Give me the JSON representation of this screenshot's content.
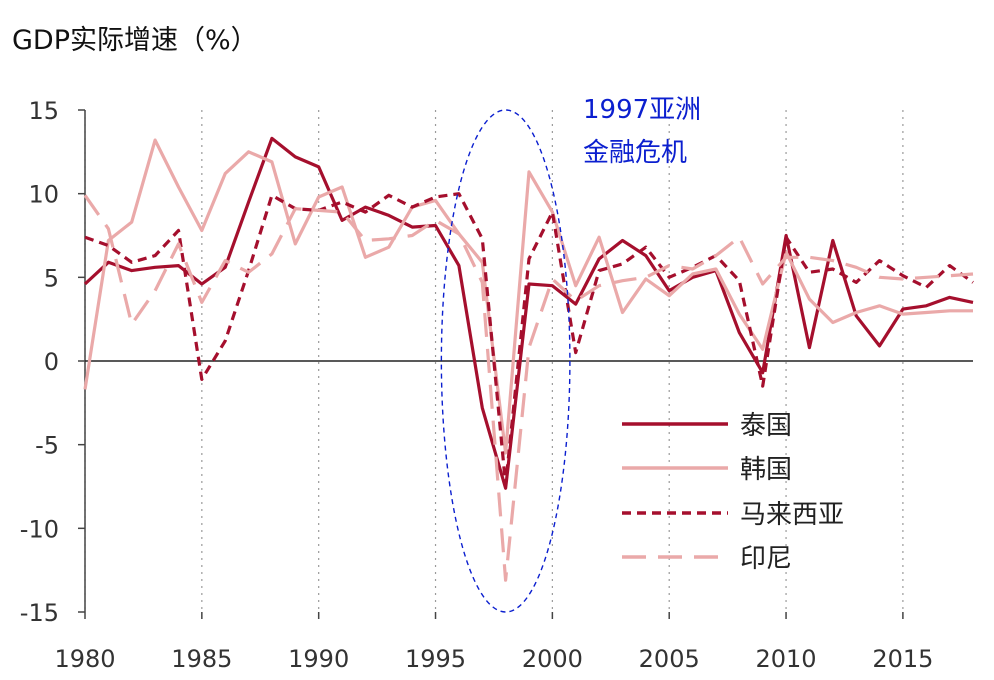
{
  "chart_data": {
    "type": "line",
    "title": "GDP实际增速（%）",
    "xlim": [
      1980,
      2018
    ],
    "ylim": [
      -15,
      15
    ],
    "x_ticks": [
      "1980",
      "1985",
      "1990",
      "1995",
      "2000",
      "2005",
      "2010",
      "2015"
    ],
    "y_ticks": [
      "15",
      "10",
      "5",
      "0",
      "-5",
      "-10",
      "-15"
    ],
    "grid": "vertical dotted",
    "legend_placement": "lower-right",
    "annotation": {
      "text_line1": "1997亚洲",
      "text_line2": "金融危机",
      "color": "#0b1fcf",
      "ellipse_center_year": 1998,
      "ellipse_center_value": 0,
      "ellipse_half_width_years": 2.75,
      "ellipse_half_height_value": 15
    },
    "x": [
      1980,
      1981,
      1982,
      1983,
      1984,
      1985,
      1986,
      1987,
      1988,
      1989,
      1990,
      1991,
      1992,
      1993,
      1994,
      1995,
      1996,
      1997,
      1998,
      1999,
      2000,
      2001,
      2002,
      2003,
      2004,
      2005,
      2006,
      2007,
      2008,
      2009,
      2010,
      2011,
      2012,
      2013,
      2014,
      2015,
      2016,
      2017,
      2018
    ],
    "series": [
      {
        "name": "泰国",
        "color": "#a50f2d",
        "style": "solid",
        "values": [
          4.6,
          5.9,
          5.4,
          5.6,
          5.7,
          4.6,
          5.6,
          9.5,
          13.3,
          12.2,
          11.6,
          8.4,
          9.2,
          8.7,
          8.0,
          8.1,
          5.7,
          -2.8,
          -7.6,
          4.6,
          4.5,
          3.4,
          6.1,
          7.2,
          6.3,
          4.2,
          5.0,
          5.4,
          1.7,
          -0.7,
          7.5,
          0.8,
          7.2,
          2.7,
          0.9,
          3.1,
          3.3,
          3.8,
          3.5
        ]
      },
      {
        "name": "韩国",
        "color": "#eaa9a9",
        "style": "solid",
        "values": [
          -1.7,
          7.2,
          8.3,
          13.2,
          10.4,
          7.8,
          11.2,
          12.5,
          11.9,
          7.0,
          9.8,
          10.4,
          6.2,
          6.8,
          9.2,
          9.6,
          7.6,
          5.9,
          -5.5,
          11.3,
          8.9,
          4.5,
          7.4,
          2.9,
          4.9,
          3.9,
          5.2,
          5.5,
          2.8,
          0.7,
          6.5,
          3.7,
          2.3,
          2.9,
          3.3,
          2.8,
          2.9,
          3.0,
          3.0
        ]
      },
      {
        "name": "马来西亚",
        "color": "#a50f2d",
        "style": "dashed",
        "values": [
          7.4,
          6.9,
          5.9,
          6.3,
          7.8,
          -1.1,
          1.2,
          5.4,
          9.9,
          9.1,
          9.0,
          9.5,
          8.9,
          9.9,
          9.2,
          9.8,
          10.0,
          7.3,
          -7.4,
          6.1,
          8.9,
          0.5,
          5.4,
          5.8,
          6.8,
          5.0,
          5.6,
          6.3,
          4.8,
          -1.5,
          7.4,
          5.3,
          5.5,
          4.7,
          6.0,
          5.1,
          4.4,
          5.7,
          4.7
        ]
      },
      {
        "name": "印尼",
        "color": "#eaa9a9",
        "style": "longdash",
        "values": [
          9.9,
          7.9,
          2.2,
          4.2,
          7.0,
          3.5,
          6.0,
          5.3,
          6.4,
          9.1,
          9.0,
          8.9,
          7.2,
          7.3,
          7.5,
          8.4,
          7.6,
          4.7,
          -13.1,
          0.8,
          4.9,
          3.6,
          4.5,
          4.8,
          5.0,
          5.7,
          5.5,
          6.3,
          7.4,
          4.6,
          6.2,
          6.2,
          6.0,
          5.6,
          5.0,
          4.9,
          5.0,
          5.1,
          5.2
        ]
      }
    ]
  }
}
